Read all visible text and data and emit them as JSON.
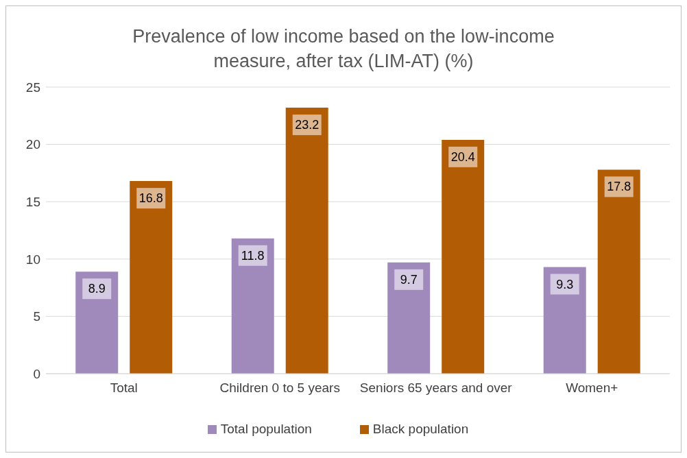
{
  "chart_data": {
    "type": "bar",
    "title": "Prevalence of low income based on the low-income measure, after tax (LIM-AT) (%)",
    "categories": [
      "Total",
      "Children 0 to 5 years",
      "Seniors 65 years and over",
      "Women+"
    ],
    "series": [
      {
        "name": "Total population",
        "color": "#a08abc",
        "values": [
          8.9,
          11.8,
          9.7,
          9.3
        ]
      },
      {
        "name": "Black population",
        "color": "#b35c06",
        "values": [
          16.8,
          23.2,
          20.4,
          17.8
        ]
      }
    ],
    "ylim": [
      0,
      25
    ],
    "yticks": [
      0,
      5,
      10,
      15,
      20,
      25
    ],
    "grid": "y",
    "legend": "bottom",
    "data_labels": true
  }
}
